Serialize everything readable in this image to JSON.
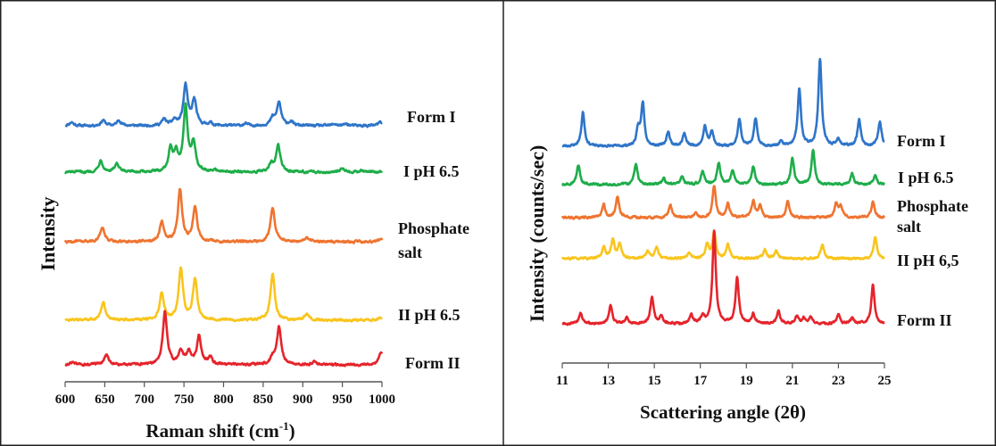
{
  "colors": {
    "blue": "#2f75c9",
    "green": "#1fad4a",
    "orange": "#ef7430",
    "yellow": "#f9c51d",
    "red": "#e5242b",
    "frame": "#222222"
  },
  "chart_data": [
    {
      "type": "line",
      "title": "",
      "xlabel": "Raman shift (cm-1)",
      "xlabel_main": "Raman shift (cm",
      "xlabel_sup": "-1",
      "xlabel_close": ")",
      "ylabel": "Intensity",
      "xlim": [
        600,
        1000
      ],
      "x_ticks": [
        "600",
        "650",
        "700",
        "750",
        "800",
        "850",
        "900",
        "950",
        "1000"
      ],
      "grid": false,
      "series": [
        {
          "name": "Form I",
          "color": "blue",
          "peaks": [
            [
              608,
              4
            ],
            [
              648,
              6
            ],
            [
              668,
              6
            ],
            [
              725,
              7
            ],
            [
              738,
              6
            ],
            [
              752,
              45
            ],
            [
              763,
              28
            ],
            [
              783,
              3
            ],
            [
              828,
              2
            ],
            [
              862,
              8
            ],
            [
              870,
              26
            ],
            [
              885,
              4
            ],
            [
              940,
              2
            ],
            [
              955,
              2
            ],
            [
              998,
              4
            ]
          ]
        },
        {
          "name": "I pH 6.5",
          "color": "green",
          "peaks": [
            [
              645,
              13
            ],
            [
              665,
              9
            ],
            [
              733,
              24
            ],
            [
              740,
              20
            ],
            [
              752,
              72
            ],
            [
              762,
              30
            ],
            [
              790,
              2
            ],
            [
              860,
              8
            ],
            [
              869,
              30
            ],
            [
              950,
              5
            ],
            [
              975,
              2
            ]
          ]
        },
        {
          "name": "Phosphate salt",
          "color": "orange",
          "peaks": [
            [
              647,
              16
            ],
            [
              722,
              22
            ],
            [
              745,
              58
            ],
            [
              764,
              38
            ],
            [
              862,
              38
            ],
            [
              905,
              5
            ],
            [
              998,
              3
            ]
          ]
        },
        {
          "name": "II pH 6.5",
          "color": "yellow",
          "peaks": [
            [
              648,
              20
            ],
            [
              722,
              30
            ],
            [
              746,
              58
            ],
            [
              764,
              46
            ],
            [
              862,
              52
            ],
            [
              905,
              8
            ],
            [
              998,
              3
            ]
          ]
        },
        {
          "name": "Form II",
          "color": "red",
          "peaks": [
            [
              610,
              3
            ],
            [
              652,
              12
            ],
            [
              726,
              60
            ],
            [
              746,
              16
            ],
            [
              756,
              14
            ],
            [
              769,
              32
            ],
            [
              783,
              8
            ],
            [
              862,
              8
            ],
            [
              870,
              42
            ],
            [
              915,
              3
            ],
            [
              999,
              14
            ]
          ]
        }
      ]
    },
    {
      "type": "line",
      "title": "",
      "xlabel": "Scattering angle (2θ)",
      "ylabel": "Intensity (counts/sec)",
      "xlim": [
        11,
        25
      ],
      "x_ticks": [
        "11",
        "13",
        "15",
        "17",
        "19",
        "21",
        "23",
        "25"
      ],
      "grid": false,
      "series": [
        {
          "name": "Form I",
          "color": "blue",
          "peaks": [
            [
              11.9,
              38
            ],
            [
              14.3,
              18
            ],
            [
              14.5,
              48
            ],
            [
              15.6,
              16
            ],
            [
              16.3,
              14
            ],
            [
              17.2,
              22
            ],
            [
              17.5,
              16
            ],
            [
              18.7,
              30
            ],
            [
              19.4,
              30
            ],
            [
              20.5,
              5
            ],
            [
              21.3,
              64
            ],
            [
              22.2,
              98
            ],
            [
              23.0,
              8
            ],
            [
              23.9,
              30
            ],
            [
              24.8,
              28
            ]
          ]
        },
        {
          "name": "I pH 6.5",
          "color": "green",
          "peaks": [
            [
              11.7,
              22
            ],
            [
              14.2,
              23
            ],
            [
              15.4,
              7
            ],
            [
              16.2,
              9
            ],
            [
              17.1,
              15
            ],
            [
              17.8,
              24
            ],
            [
              18.4,
              16
            ],
            [
              19.3,
              20
            ],
            [
              21.0,
              30
            ],
            [
              21.9,
              38
            ],
            [
              23.6,
              12
            ],
            [
              24.6,
              10
            ]
          ]
        },
        {
          "name": "Phosphate salt",
          "color": "orange",
          "peaks": [
            [
              12.8,
              15
            ],
            [
              13.4,
              24
            ],
            [
              15.7,
              14
            ],
            [
              16.8,
              5
            ],
            [
              17.6,
              35
            ],
            [
              18.2,
              16
            ],
            [
              19.3,
              18
            ],
            [
              19.6,
              14
            ],
            [
              20.8,
              18
            ],
            [
              22.9,
              15
            ],
            [
              23.1,
              12
            ],
            [
              24.5,
              18
            ]
          ]
        },
        {
          "name": "II pH 6,5",
          "color": "yellow",
          "peaks": [
            [
              12.8,
              13
            ],
            [
              13.2,
              22
            ],
            [
              13.5,
              16
            ],
            [
              14.7,
              9
            ],
            [
              15.1,
              13
            ],
            [
              16.5,
              6
            ],
            [
              17.3,
              16
            ],
            [
              17.6,
              30
            ],
            [
              18.2,
              16
            ],
            [
              19.8,
              10
            ],
            [
              20.3,
              9
            ],
            [
              22.3,
              16
            ],
            [
              24.6,
              24
            ]
          ]
        },
        {
          "name": "Form II",
          "color": "red",
          "peaks": [
            [
              11.8,
              12
            ],
            [
              13.1,
              20
            ],
            [
              13.8,
              6
            ],
            [
              14.9,
              30
            ],
            [
              15.3,
              9
            ],
            [
              16.6,
              10
            ],
            [
              17.1,
              8
            ],
            [
              17.6,
              105
            ],
            [
              18.6,
              52
            ],
            [
              19.3,
              11
            ],
            [
              20.4,
              14
            ],
            [
              21.2,
              8
            ],
            [
              21.5,
              6
            ],
            [
              21.8,
              7
            ],
            [
              23.0,
              10
            ],
            [
              23.6,
              6
            ],
            [
              24.5,
              44
            ]
          ]
        }
      ]
    }
  ]
}
